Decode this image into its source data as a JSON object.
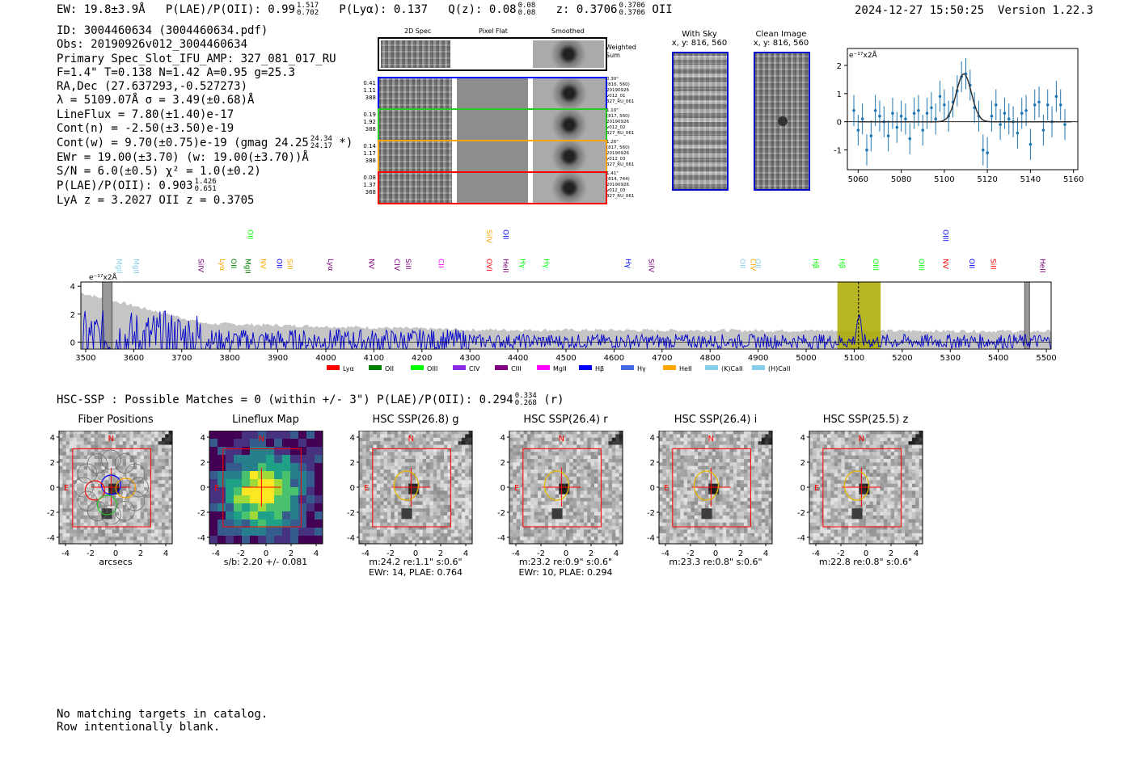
{
  "header": {
    "ew": "EW: 19.8±3.9Å",
    "plae_label": "P(LAE)/P(OII): 0.99",
    "plae_hi": "1.517",
    "plae_lo": "0.702",
    "plya": "P(Lyα): 0.137",
    "qz_label": "Q(z): 0.08",
    "qz_hi": "0.08",
    "qz_lo": "0.08",
    "z_label": "z: 0.3706",
    "z_hi": "0.3706",
    "z_lo": "0.3706",
    "z_line": "OII",
    "timestamp": "2024-12-27 15:50:25",
    "version": "Version 1.22.3"
  },
  "info": {
    "id": "ID: 3004460634 (3004460634.pdf)",
    "obs": "Obs: 20190926v012_3004460634",
    "primary": "Primary Spec_Slot_IFU_AMP: 327_081_017_RU",
    "fiber_stats": "F=1.4\"  T=0.138  N=1.42  A=0.95  g=25.3",
    "radec": "RA,Dec (27.637293,-0.527273)",
    "wave": "λ = 5109.07Å   σ = 3.49(±0.68)Å",
    "lineflux": "LineFlux = 7.80(±1.40)e-17",
    "contn": "Cont(n) = -2.50(±3.50)e-19",
    "contw": "Cont(w) = 9.70(±0.75)e-19 (gmag 24.25",
    "gmag_hi": "24.34",
    "gmag_lo": "24.17",
    "contw_end": "*)",
    "ewr": "EWr = 19.00(±3.70) (w: 19.00(±3.70))Å",
    "sn": "S/N = 6.0(±0.5)  χ² = 1.0(±0.2)",
    "plae": "P(LAE)/P(OII): 0.903",
    "plae_hi": "1.426",
    "plae_lo": "0.651",
    "lya": "LyA z = 3.2027  OII z = 0.3705"
  },
  "spec2d": {
    "col_titles": [
      "2D Spec",
      "Pixel Flat",
      "Smoothed"
    ],
    "weighted_label": "Weighted Sum",
    "rows": [
      {
        "color": "#0000ff",
        "left": [
          "0.41",
          "1.11",
          "388"
        ],
        "right": [
          "0.30\"",
          "(816, 560)",
          "20190926",
          "v012_01",
          "327_RU_061"
        ]
      },
      {
        "color": "#22cc22",
        "left": [
          "0.19",
          "1.92",
          "388"
        ],
        "right": [
          "1.10\"",
          "(817, 560)",
          "20190926",
          "v012_02",
          "327_RU_061"
        ]
      },
      {
        "color": "#ffa500",
        "left": [
          "0.14",
          "1.17",
          "388"
        ],
        "right": [
          "1.26\"",
          "(817, 560)",
          "20190926",
          "v012_03",
          "327_RU_061"
        ]
      },
      {
        "color": "#ff0000",
        "left": [
          "0.08",
          "1.37",
          "368"
        ],
        "right": [
          "1.41\"",
          "(814, 744)",
          "20190926",
          "v012_03",
          "327_RU_061"
        ]
      }
    ]
  },
  "thumbs": {
    "with_sky": "With Sky",
    "with_sky_xy": "x, y: 816, 560",
    "clean": "Clean Image",
    "clean_xy": "x, y: 816, 560"
  },
  "colors": {
    "spectrum": "#0000cc",
    "error": "#bbbbbb",
    "fit": "#333333",
    "points": "#1f77b4",
    "highlight": "#aaaa00",
    "frame": "#0000cc",
    "box": "#ff0000"
  },
  "chart_data": [
    {
      "type": "scatter",
      "title": "",
      "unit_label": "e⁻¹⁷x2Å",
      "xlim": [
        5055,
        5162
      ],
      "ylim": [
        -1.7,
        2.6
      ],
      "xticks": [
        5060,
        5080,
        5100,
        5120,
        5140,
        5160
      ],
      "yticks": [
        -1,
        0,
        1,
        2
      ],
      "x": [
        5058,
        5060,
        5062,
        5064,
        5066,
        5068,
        5070,
        5072,
        5074,
        5076,
        5078,
        5080,
        5082,
        5084,
        5086,
        5088,
        5090,
        5092,
        5094,
        5096,
        5098,
        5100,
        5102,
        5104,
        5106,
        5108,
        5110,
        5112,
        5114,
        5116,
        5118,
        5120,
        5122,
        5124,
        5126,
        5128,
        5130,
        5132,
        5134,
        5136,
        5138,
        5140,
        5142,
        5144,
        5146,
        5148,
        5150,
        5152,
        5154,
        5156
      ],
      "y": [
        0.4,
        -0.3,
        0.1,
        -1.0,
        -0.5,
        0.4,
        0.2,
        0.0,
        -0.5,
        0.3,
        -0.2,
        0.2,
        0.1,
        -0.6,
        0.3,
        0.4,
        -0.3,
        0.3,
        0.5,
        0.1,
        0.9,
        0.6,
        0.2,
        0.7,
        1.1,
        1.6,
        1.7,
        1.3,
        0.5,
        0.2,
        -1.0,
        -1.1,
        0.2,
        0.6,
        -0.1,
        0.3,
        0.1,
        0.0,
        -0.4,
        0.3,
        0.4,
        -0.8,
        0.6,
        0.7,
        -0.3,
        0.6,
        0.0,
        0.9,
        0.6,
        -0.1
      ],
      "err": 0.55,
      "fit": {
        "center": 5109.07,
        "sigma": 3.49,
        "amplitude": 1.7
      }
    },
    {
      "type": "line",
      "unit_label": "e⁻¹⁷x2Å",
      "xlim": [
        3490,
        5510
      ],
      "ylim": [
        -0.5,
        4.3
      ],
      "xticks": [
        3500,
        3600,
        3700,
        3800,
        3900,
        4000,
        4100,
        4200,
        4300,
        4400,
        4500,
        4600,
        4700,
        4800,
        4900,
        5000,
        5100,
        5200,
        5300,
        5400,
        5500
      ],
      "yticks": [
        0,
        2,
        4
      ],
      "highlight_range": [
        5065,
        5155
      ],
      "emission_wave": 5109,
      "masked": [
        [
          3535,
          3555
        ],
        [
          5455,
          5465
        ]
      ],
      "legend": [
        {
          "name": "Lyα",
          "color": "#ff0000"
        },
        {
          "name": "OII",
          "color": "#008000"
        },
        {
          "name": "OIII",
          "color": "#00ff00"
        },
        {
          "name": "CIV",
          "color": "#8a2be2"
        },
        {
          "name": "CIII",
          "color": "#800080"
        },
        {
          "name": "MgII",
          "color": "#ff00ff"
        },
        {
          "name": "Hβ",
          "color": "#0000ff"
        },
        {
          "name": "Hγ",
          "color": "#4169e1"
        },
        {
          "name": "HeII",
          "color": "#ffa500"
        },
        {
          "name": "(K)CaII",
          "color": "#87ceeb"
        },
        {
          "name": "(H)CaII",
          "color": "#87ceeb"
        }
      ],
      "line_labels": [
        {
          "label": "MgII",
          "w": 3570,
          "color": "#87ceeb",
          "row": 1
        },
        {
          "label": "MgII",
          "w": 3605,
          "color": "#87ceeb",
          "row": 1
        },
        {
          "label": "SiIV",
          "w": 3740,
          "color": "#800080",
          "row": 1
        },
        {
          "label": "Lyα",
          "w": 3785,
          "color": "#ffa500",
          "row": 1
        },
        {
          "label": "OII",
          "w": 3808,
          "color": "#008000",
          "row": 1
        },
        {
          "label": "MgII",
          "w": 3838,
          "color": "#008000",
          "row": 1
        },
        {
          "label": "OII",
          "w": 3843,
          "color": "#00ff00",
          "row": 0
        },
        {
          "label": "NV",
          "w": 3870,
          "color": "#ffa500",
          "row": 1
        },
        {
          "label": "OII",
          "w": 3903,
          "color": "#0000ff",
          "row": 1
        },
        {
          "label": "SiII",
          "w": 3925,
          "color": "#ffa500",
          "row": 1
        },
        {
          "label": "Lyα",
          "w": 4010,
          "color": "#800080",
          "row": 1
        },
        {
          "label": "NV",
          "w": 4095,
          "color": "#800080",
          "row": 1
        },
        {
          "label": "CIV",
          "w": 4148,
          "color": "#800080",
          "row": 1
        },
        {
          "label": "SiII",
          "w": 4172,
          "color": "#800080",
          "row": 1
        },
        {
          "label": "CII",
          "w": 4240,
          "color": "#ff00ff",
          "row": 1
        },
        {
          "label": "SiIV",
          "w": 4340,
          "color": "#ffa500",
          "row": 0
        },
        {
          "label": "OVI",
          "w": 4340,
          "color": "#ff0000",
          "row": 1
        },
        {
          "label": "OII",
          "w": 4375,
          "color": "#0000ff",
          "row": 0
        },
        {
          "label": "HeII",
          "w": 4375,
          "color": "#800080",
          "row": 1
        },
        {
          "label": "Hγ",
          "w": 4410,
          "color": "#00ff00",
          "row": 1
        },
        {
          "label": "Hγ",
          "w": 4460,
          "color": "#00ff00",
          "row": 1
        },
        {
          "label": "Hγ",
          "w": 4630,
          "color": "#0000ff",
          "row": 1
        },
        {
          "label": "SiIV",
          "w": 4678,
          "color": "#800080",
          "row": 1
        },
        {
          "label": "OII",
          "w": 4868,
          "color": "#87ceeb",
          "row": 1
        },
        {
          "label": "CIV",
          "w": 4890,
          "color": "#ffa500",
          "row": 1
        },
        {
          "label": "OII",
          "w": 4900,
          "color": "#87ceeb",
          "row": 1
        },
        {
          "label": "Hβ",
          "w": 5020,
          "color": "#00ff00",
          "row": 1
        },
        {
          "label": "Hβ",
          "w": 5075,
          "color": "#00ff00",
          "row": 1
        },
        {
          "label": "OIII",
          "w": 5145,
          "color": "#00ff00",
          "row": 1
        },
        {
          "label": "OIII",
          "w": 5240,
          "color": "#00ff00",
          "row": 1
        },
        {
          "label": "NV",
          "w": 5290,
          "color": "#ff0000",
          "row": 1
        },
        {
          "label": "OIII",
          "w": 5290,
          "color": "#0000ff",
          "row": 0
        },
        {
          "label": "OII",
          "w": 5345,
          "color": "#0000ff",
          "row": 1
        },
        {
          "label": "SiII",
          "w": 5390,
          "color": "#ff0000",
          "row": 1
        },
        {
          "label": "HeII",
          "w": 5492,
          "color": "#800080",
          "row": 1
        }
      ]
    }
  ],
  "hsc": {
    "summary_prefix": "HSC-SSP : Possible Matches = 0 (within +/- 3\")  P(LAE)/P(OII): 0.294",
    "summary_hi": "0.334",
    "summary_lo": "0.268",
    "summary_suffix": "(r)",
    "panels": [
      {
        "title": "Fiber Positions",
        "xlabel": "arcsecs",
        "caption1": "",
        "caption2": "",
        "kind": "fibers"
      },
      {
        "title": "Lineflux Map",
        "xlabel": "s/b: 2.20 +/- 0.081",
        "caption1": "",
        "caption2": "",
        "kind": "flux"
      },
      {
        "title": "HSC SSP(26.8) g",
        "xlabel": "",
        "caption1": "m:24.2  re:1.1\"  s:0.6\"",
        "caption2": "EWr: 14, PLAE: 0.764",
        "kind": "img"
      },
      {
        "title": "HSC SSP(26.4) r",
        "xlabel": "",
        "caption1": "m:23.2  re:0.9\"  s:0.6\"",
        "caption2": "EWr: 10, PLAE: 0.294",
        "kind": "img"
      },
      {
        "title": "HSC SSP(26.4) i",
        "xlabel": "",
        "caption1": "m:23.3  re:0.8\"  s:0.6\"",
        "caption2": "",
        "kind": "img"
      },
      {
        "title": "HSC SSP(25.5) z",
        "xlabel": "",
        "caption1": "m:22.8  re:0.8\"  s:0.6\"",
        "caption2": "",
        "kind": "img"
      }
    ],
    "axis_ticks": [
      "-4",
      "-2",
      "0",
      "2",
      "4"
    ],
    "north": "N",
    "east": "E"
  },
  "footer": {
    "line1": "No matching targets in catalog.",
    "line2": "Row intentionally blank."
  }
}
